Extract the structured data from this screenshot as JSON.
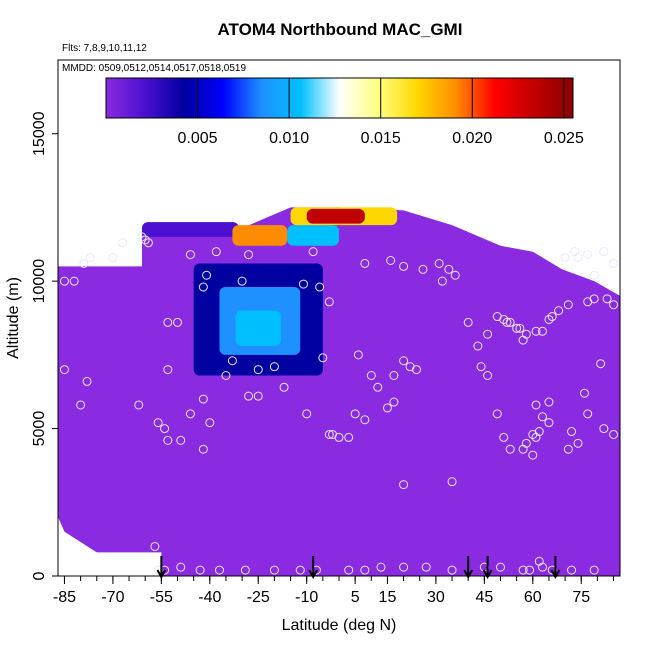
{
  "chart_data": {
    "type": "heatmap",
    "title": "ATOM4 Northbound MAC_GMI",
    "annotations": [
      "Flts: 7,8,9,10,11,12",
      "MMDD: 0509,0512,0514,0517,0518,0519"
    ],
    "xlabel": "Latitude (deg N)",
    "ylabel": "Altitude (m)",
    "xlim": [
      -87,
      87
    ],
    "ylim": [
      0,
      17500
    ],
    "x_ticks": [
      -85,
      -70,
      -55,
      -40,
      -25,
      -10,
      5,
      15,
      30,
      45,
      60,
      75
    ],
    "x_minor_step": 5,
    "y_ticks": [
      0,
      5000,
      10000,
      15000
    ],
    "colorbar": {
      "min": 0.0,
      "max": 0.0255,
      "ticks": [
        "0.005",
        "0.010",
        "0.015",
        "0.020",
        "0.025"
      ],
      "tick_values": [
        0.005,
        0.01,
        0.015,
        0.02,
        0.025
      ],
      "colors": [
        "#8a2be2",
        "#4b0fd0",
        "#0000a0",
        "#0000ff",
        "#1e90ff",
        "#00bfff",
        "#ffffff",
        "#ffff80",
        "#ffd700",
        "#ff8c00",
        "#ff0000",
        "#c00000",
        "#8b0000"
      ]
    },
    "background_value": 0.0003,
    "outline": [
      [
        -87,
        10500
      ],
      [
        -61,
        10500
      ],
      [
        -61,
        11800
      ],
      [
        -30,
        11800
      ],
      [
        -15,
        12500
      ],
      [
        0,
        12500
      ],
      [
        20,
        12400
      ],
      [
        35,
        11900
      ],
      [
        50,
        11200
      ],
      [
        60,
        11000
      ],
      [
        69,
        10400
      ],
      [
        79,
        10000
      ],
      [
        87,
        9500
      ],
      [
        87,
        0
      ],
      [
        -55,
        0
      ],
      [
        -55,
        800
      ],
      [
        -75,
        800
      ],
      [
        -85,
        1500
      ],
      [
        -87,
        2000
      ]
    ],
    "features": [
      {
        "name": "upper-band-left",
        "lat": [
          -61,
          -31
        ],
        "alt": [
          11500,
          12000
        ],
        "value": 0.0035
      },
      {
        "name": "upper-band-peak",
        "lat": [
          -33,
          -16
        ],
        "alt": [
          11200,
          11900
        ],
        "value": 0.0195
      },
      {
        "name": "upper-band-mid",
        "lat": [
          -16,
          0
        ],
        "alt": [
          11200,
          11900
        ],
        "value": 0.011
      },
      {
        "name": "upper-band-right",
        "lat": [
          -15,
          18
        ],
        "alt": [
          11900,
          12500
        ],
        "value": 0.016
      },
      {
        "name": "upper-band-right-core",
        "lat": [
          -10,
          8
        ],
        "alt": [
          11950,
          12450
        ],
        "value": 0.022
      },
      {
        "name": "plume-shell",
        "lat": [
          -45,
          -5
        ],
        "alt": [
          6800,
          10600
        ],
        "value": 0.0045
      },
      {
        "name": "plume-core",
        "lat": [
          -37,
          -12
        ],
        "alt": [
          7500,
          9800
        ],
        "value": 0.0085
      },
      {
        "name": "plume-center",
        "lat": [
          -32,
          -18
        ],
        "alt": [
          7800,
          9000
        ],
        "value": 0.0105
      }
    ],
    "points": [
      [
        -85,
        10000
      ],
      [
        -82,
        10000
      ],
      [
        -79,
        10600
      ],
      [
        -77,
        10800
      ],
      [
        -70,
        10800
      ],
      [
        -67,
        11300
      ],
      [
        -61,
        11500
      ],
      [
        -60,
        11400
      ],
      [
        -59,
        11300
      ],
      [
        -46,
        10900
      ],
      [
        -38,
        11000
      ],
      [
        -28,
        10900
      ],
      [
        -8,
        11000
      ],
      [
        -41,
        10200
      ],
      [
        -30,
        10000
      ],
      [
        -42,
        9800
      ],
      [
        -11,
        9900
      ],
      [
        -6,
        9800
      ],
      [
        -3,
        9300
      ],
      [
        -53,
        8600
      ],
      [
        -50,
        8600
      ],
      [
        -33,
        7300
      ],
      [
        -25,
        7000
      ],
      [
        -20,
        7100
      ],
      [
        -5,
        7400
      ],
      [
        -35,
        6800
      ],
      [
        -53,
        7000
      ],
      [
        -85,
        7000
      ],
      [
        -78,
        6600
      ],
      [
        -62,
        5800
      ],
      [
        -42,
        6000
      ],
      [
        -28,
        6100
      ],
      [
        -25,
        6100
      ],
      [
        -17,
        6400
      ],
      [
        -80,
        5800
      ],
      [
        -46,
        5500
      ],
      [
        -40,
        5200
      ],
      [
        -10,
        5500
      ],
      [
        -3,
        4800
      ],
      [
        -2,
        4800
      ],
      [
        3,
        4700
      ],
      [
        0,
        4700
      ],
      [
        5,
        5500
      ],
      [
        8,
        5300
      ],
      [
        12,
        6400
      ],
      [
        15,
        5700
      ],
      [
        17,
        5900
      ],
      [
        24,
        7000
      ],
      [
        22,
        7100
      ],
      [
        20,
        7300
      ],
      [
        17,
        6800
      ],
      [
        10,
        6800
      ],
      [
        6,
        7500
      ],
      [
        -56,
        5200
      ],
      [
        -54,
        5000
      ],
      [
        -53,
        4600
      ],
      [
        -49,
        4600
      ],
      [
        -42,
        4300
      ],
      [
        -57,
        1000
      ],
      [
        -56,
        200
      ],
      [
        -54,
        200
      ],
      [
        -49,
        300
      ],
      [
        -43,
        200
      ],
      [
        -37,
        200
      ],
      [
        -29,
        200
      ],
      [
        -20,
        200
      ],
      [
        -12,
        200
      ],
      [
        -7,
        200
      ],
      [
        3,
        200
      ],
      [
        8,
        200
      ],
      [
        13,
        300
      ],
      [
        20,
        300
      ],
      [
        27,
        300
      ],
      [
        35,
        200
      ],
      [
        45,
        300
      ],
      [
        50,
        300
      ],
      [
        57,
        200
      ],
      [
        59,
        200
      ],
      [
        62,
        500
      ],
      [
        63,
        300
      ],
      [
        66,
        200
      ],
      [
        72,
        200
      ],
      [
        79,
        200
      ],
      [
        20,
        3100
      ],
      [
        8,
        10600
      ],
      [
        16,
        10700
      ],
      [
        20,
        10500
      ],
      [
        26,
        10400
      ],
      [
        31,
        10600
      ],
      [
        34,
        10400
      ],
      [
        36,
        10200
      ],
      [
        32,
        10000
      ],
      [
        40,
        8600
      ],
      [
        43,
        7800
      ],
      [
        46,
        8200
      ],
      [
        49,
        8800
      ],
      [
        51,
        8700
      ],
      [
        52,
        8600
      ],
      [
        53,
        8600
      ],
      [
        55,
        8400
      ],
      [
        56,
        8400
      ],
      [
        57,
        8000
      ],
      [
        58,
        8200
      ],
      [
        61,
        8300
      ],
      [
        63,
        8300
      ],
      [
        65,
        8700
      ],
      [
        66,
        8800
      ],
      [
        68,
        9000
      ],
      [
        71,
        9200
      ],
      [
        77,
        9300
      ],
      [
        79,
        9400
      ],
      [
        83,
        9400
      ],
      [
        85,
        9200
      ],
      [
        81,
        7200
      ],
      [
        46,
        6800
      ],
      [
        49,
        5500
      ],
      [
        51,
        4700
      ],
      [
        53,
        4300
      ],
      [
        57,
        4300
      ],
      [
        58,
        4500
      ],
      [
        60,
        4800
      ],
      [
        61,
        4700
      ],
      [
        62,
        4900
      ],
      [
        65,
        5200
      ],
      [
        63,
        5400
      ],
      [
        61,
        5800
      ],
      [
        65,
        5900
      ],
      [
        72,
        4900
      ],
      [
        76,
        6200
      ],
      [
        82,
        5000
      ],
      [
        85,
        4800
      ],
      [
        77,
        5500
      ],
      [
        74,
        4500
      ],
      [
        71,
        4300
      ],
      [
        60,
        4100
      ],
      [
        44,
        7100
      ],
      [
        79,
        10200
      ],
      [
        74,
        10800
      ],
      [
        77,
        10900
      ],
      [
        82,
        11000
      ],
      [
        85,
        10600
      ],
      [
        70,
        10800
      ],
      [
        73,
        11000
      ],
      [
        35,
        3200
      ]
    ],
    "arrows_lat": [
      -55,
      -8,
      40,
      46,
      67
    ]
  }
}
